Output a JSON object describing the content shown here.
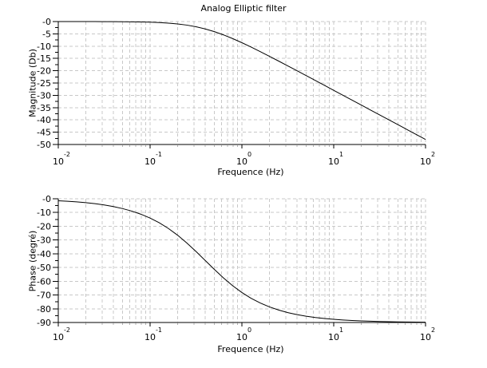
{
  "figure": {
    "background": "#ffffff",
    "axis_color": "#000000",
    "grid_color": "#c8c8c8",
    "minor_tick_color": "#b0b0b0",
    "curve_color": "#000000",
    "text_color": "#000000"
  },
  "chart_data": [
    {
      "type": "line",
      "title": "Analog Elliptic filter",
      "xlabel": "Frequence (Hz)",
      "ylabel": "Magnitude (Db)",
      "xscale": "log10",
      "xlim_log10": [
        -2,
        2
      ],
      "ylim": [
        -50,
        0
      ],
      "grid": true,
      "x_tick_prefix": "10",
      "x_tick_exponents": [
        "-2",
        "-1",
        "0",
        "1",
        "2"
      ],
      "y_tick_values": [
        0,
        -5,
        -10,
        -15,
        -20,
        -25,
        -30,
        -35,
        -40,
        -45,
        -50
      ],
      "y_tick_labels": [
        "-0",
        "-5",
        "-10",
        "-15",
        "-20",
        "-25",
        "-30",
        "-35",
        "-40",
        "-45",
        "-50"
      ],
      "series": [
        {
          "name": "magnitude",
          "x_log10": [
            -2.0,
            -1.9,
            -1.8,
            -1.7,
            -1.6,
            -1.5,
            -1.4,
            -1.3,
            -1.2,
            -1.1,
            -1.0,
            -0.9,
            -0.8,
            -0.7,
            -0.6,
            -0.5,
            -0.4,
            -0.3,
            -0.2,
            -0.1,
            0.0,
            0.1,
            0.2,
            0.3,
            0.4,
            0.5,
            0.6,
            0.7,
            0.8,
            0.9,
            1.0,
            1.1,
            1.2,
            1.3,
            1.4,
            1.5,
            1.6,
            1.7,
            1.8,
            1.9,
            2.0
          ],
          "y": [
            -0.0,
            -0.0,
            -0.01,
            -0.01,
            -0.02,
            -0.03,
            -0.04,
            -0.07,
            -0.11,
            -0.17,
            -0.26,
            -0.41,
            -0.63,
            -0.96,
            -1.44,
            -2.11,
            -2.99,
            -4.1,
            -5.43,
            -6.94,
            -8.6,
            -10.38,
            -12.23,
            -14.13,
            -16.07,
            -18.03,
            -20.0,
            -21.99,
            -23.97,
            -25.97,
            -27.97,
            -29.97,
            -31.96,
            -33.96,
            -35.96,
            -37.96,
            -39.96,
            -41.96,
            -43.96,
            -45.96,
            -47.96
          ]
        }
      ]
    },
    {
      "type": "line",
      "title": "",
      "xlabel": "Frequence (Hz)",
      "ylabel": "Phase (degré)",
      "xscale": "log10",
      "xlim_log10": [
        -2,
        2
      ],
      "ylim": [
        -90,
        0
      ],
      "grid": true,
      "x_tick_prefix": "10",
      "x_tick_exponents": [
        "-2",
        "-1",
        "0",
        "1",
        "2"
      ],
      "y_tick_values": [
        0,
        -10,
        -20,
        -30,
        -40,
        -50,
        -60,
        -70,
        -80,
        -90
      ],
      "y_tick_labels": [
        "-0",
        "-10",
        "-20",
        "-30",
        "-40",
        "-50",
        "-60",
        "-70",
        "-80",
        "-90"
      ],
      "series": [
        {
          "name": "phase",
          "x_log10": [
            -2.0,
            -1.9,
            -1.8,
            -1.7,
            -1.6,
            -1.5,
            -1.4,
            -1.3,
            -1.2,
            -1.1,
            -1.0,
            -0.9,
            -0.8,
            -0.7,
            -0.6,
            -0.5,
            -0.4,
            -0.3,
            -0.2,
            -0.1,
            0.0,
            0.1,
            0.2,
            0.3,
            0.4,
            0.5,
            0.6,
            0.7,
            0.8,
            0.9,
            1.0,
            1.1,
            1.2,
            1.3,
            1.4,
            1.5,
            1.6,
            1.7,
            1.8,
            1.9,
            2.0
          ],
          "y": [
            -1.43,
            -1.8,
            -2.27,
            -2.86,
            -3.59,
            -4.52,
            -5.68,
            -7.14,
            -8.96,
            -11.23,
            -14.04,
            -17.47,
            -21.62,
            -26.51,
            -32.13,
            -38.33,
            -44.86,
            -51.41,
            -57.63,
            -63.27,
            -68.2,
            -72.38,
            -75.83,
            -78.66,
            -80.95,
            -82.79,
            -84.26,
            -85.44,
            -86.37,
            -87.12,
            -87.71,
            -88.18,
            -88.55,
            -88.85,
            -89.09,
            -89.28,
            -89.42,
            -89.54,
            -89.64,
            -89.71,
            -89.77
          ]
        }
      ]
    }
  ]
}
